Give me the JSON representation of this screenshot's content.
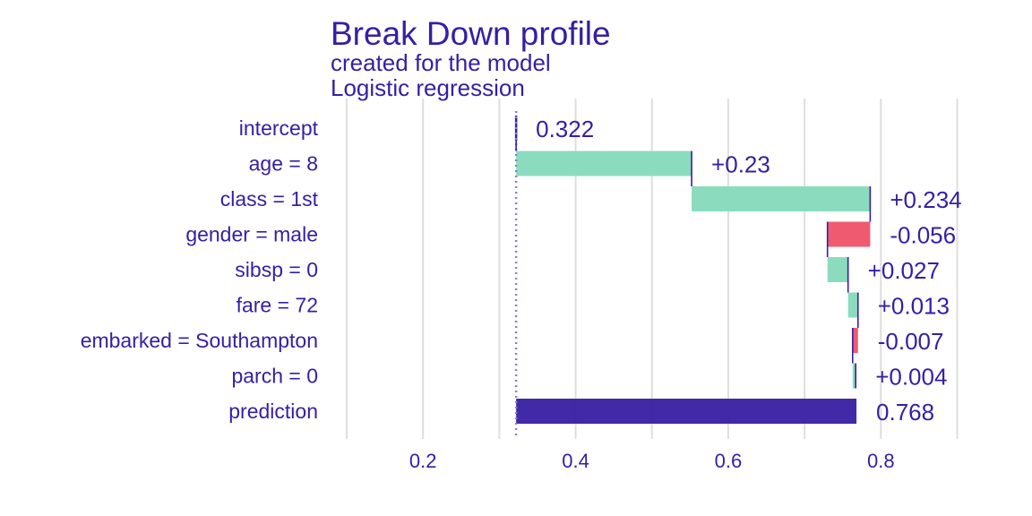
{
  "chart_data": {
    "type": "waterfall",
    "title": "Break Down profile",
    "subtitle_lines": [
      "created for the  model",
      "Logistic regression"
    ],
    "x_ticks": [
      0.2,
      0.4,
      0.6,
      0.8
    ],
    "x_tick_labels": [
      "0.2",
      "0.4",
      "0.6",
      "0.8"
    ],
    "xlim": [
      0.08,
      0.91
    ],
    "grid": "vertical",
    "baseline": 0.322,
    "rows": [
      {
        "label": "intercept",
        "start": 0.322,
        "end": 0.322,
        "value_label": "0.322",
        "kind": "intercept"
      },
      {
        "label": "age = 8",
        "start": 0.322,
        "end": 0.552,
        "value_label": "+0.23",
        "kind": "positive"
      },
      {
        "label": "class = 1st",
        "start": 0.552,
        "end": 0.786,
        "value_label": "+0.234",
        "kind": "positive"
      },
      {
        "label": "gender = male",
        "start": 0.786,
        "end": 0.73,
        "value_label": "-0.056",
        "kind": "negative"
      },
      {
        "label": "sibsp = 0",
        "start": 0.73,
        "end": 0.757,
        "value_label": "+0.027",
        "kind": "positive"
      },
      {
        "label": "fare = 72",
        "start": 0.757,
        "end": 0.77,
        "value_label": "+0.013",
        "kind": "positive"
      },
      {
        "label": "embarked = Southampton",
        "start": 0.77,
        "end": 0.763,
        "value_label": "-0.007",
        "kind": "negative"
      },
      {
        "label": "parch = 0",
        "start": 0.763,
        "end": 0.767,
        "value_label": "+0.004",
        "kind": "positive"
      },
      {
        "label": "prediction",
        "start": 0.322,
        "end": 0.768,
        "value_label": "0.768",
        "kind": "prediction"
      }
    ],
    "colors": {
      "text": "#371ea3",
      "positive": "#8bdcbe",
      "negative": "#f05a71",
      "prediction": "#371ea3",
      "grid": "#dedede",
      "baseline": "#8a7fd0"
    }
  }
}
